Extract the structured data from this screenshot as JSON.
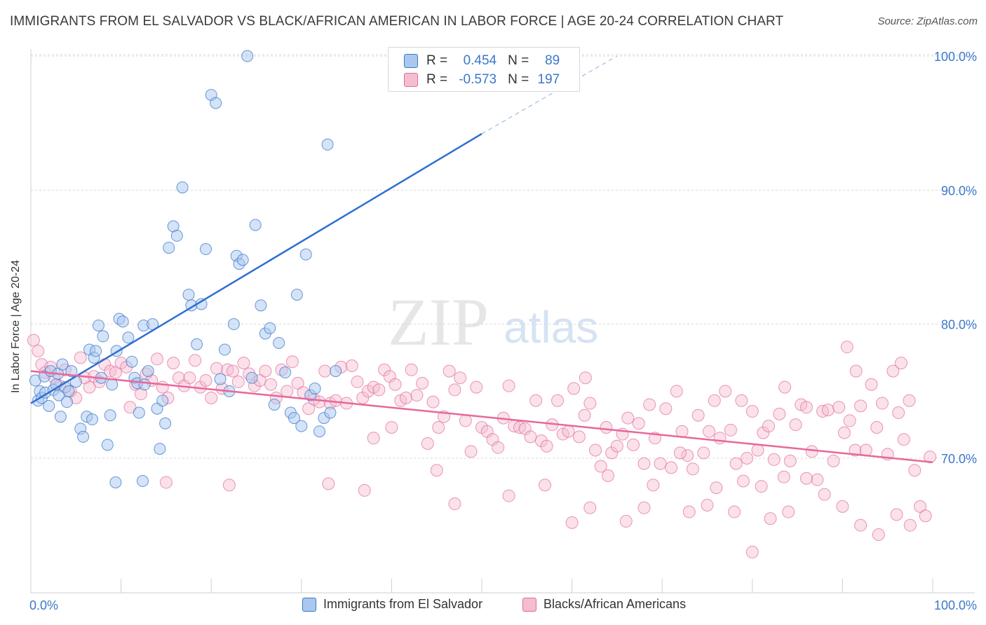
{
  "title": "IMMIGRANTS FROM EL SALVADOR VS BLACK/AFRICAN AMERICAN IN LABOR FORCE | AGE 20-24 CORRELATION CHART",
  "source": "Source: ZipAtlas.com",
  "watermark": {
    "zip": "ZIP",
    "atlas": "atlas"
  },
  "colors": {
    "blue": "#3a78c9",
    "blue_fill": "#a9c8ef",
    "blue_line": "#2f6fcf",
    "pink": "#e36b9a",
    "pink_fill": "#f4bdd0",
    "pink_line": "#e8679a",
    "grid": "#d9d9d9"
  },
  "legend_top": {
    "r_label": "R =",
    "n_label": "N =",
    "rows": [
      {
        "r": "0.454",
        "n": "89",
        "color": "#a9c8ef",
        "border": "#3a78c9"
      },
      {
        "r": "-0.573",
        "n": "197",
        "color": "#f4bdd0",
        "border": "#e36b9a"
      }
    ]
  },
  "legend_bottom": [
    {
      "label": "Immigrants from El Salvador",
      "color": "#a9c8ef",
      "border": "#3a78c9"
    },
    {
      "label": "Blacks/African Americans",
      "color": "#f4bdd0",
      "border": "#e36b9a"
    }
  ],
  "chart_data": {
    "type": "scatter",
    "title": "IMMIGRANTS FROM EL SALVADOR VS BLACK/AFRICAN AMERICAN IN LABOR FORCE | AGE 20-24 CORRELATION CHART",
    "xlabel": "",
    "ylabel": "In Labor Force | Age 20-24",
    "xlim": [
      0,
      100
    ],
    "ylim": [
      61,
      101
    ],
    "x_tick_labels": [
      "0.0%",
      "100.0%"
    ],
    "y_ticks": [
      70,
      80,
      90,
      100
    ],
    "y_tick_labels": [
      "70.0%",
      "80.0%",
      "90.0%",
      "100.0%"
    ],
    "grid": true,
    "legend_position": "top-center",
    "series": [
      {
        "name": "Immigrants from El Salvador",
        "color": "#3a78c9",
        "R": 0.454,
        "N": 89,
        "trend": {
          "x0": 0,
          "y0": 74.1,
          "x1": 50,
          "y1": 94.2,
          "dash_to_x": 65,
          "dash_to_y": 100.0
        },
        "points": [
          [
            0.5,
            75.8
          ],
          [
            0.8,
            74.3
          ],
          [
            1.0,
            75.0
          ],
          [
            1.2,
            74.5
          ],
          [
            1.5,
            76.1
          ],
          [
            1.6,
            74.9
          ],
          [
            2.0,
            73.9
          ],
          [
            2.2,
            76.5
          ],
          [
            2.5,
            75.1
          ],
          [
            2.8,
            75.5
          ],
          [
            3.0,
            76.3
          ],
          [
            3.1,
            74.7
          ],
          [
            3.5,
            77.0
          ],
          [
            3.8,
            75.3
          ],
          [
            4.0,
            74.2
          ],
          [
            4.2,
            75.0
          ],
          [
            4.5,
            76.5
          ],
          [
            5.0,
            75.7
          ],
          [
            5.5,
            72.2
          ],
          [
            5.8,
            71.6
          ],
          [
            6.2,
            73.1
          ],
          [
            6.5,
            78.1
          ],
          [
            6.8,
            72.9
          ],
          [
            7.0,
            77.5
          ],
          [
            7.2,
            78.0
          ],
          [
            7.5,
            79.9
          ],
          [
            7.8,
            76.0
          ],
          [
            8.0,
            79.1
          ],
          [
            8.5,
            71.0
          ],
          [
            8.8,
            73.2
          ],
          [
            9.0,
            75.5
          ],
          [
            9.5,
            78.0
          ],
          [
            9.8,
            80.4
          ],
          [
            10.2,
            80.2
          ],
          [
            10.8,
            79.0
          ],
          [
            11.2,
            77.2
          ],
          [
            11.5,
            76.0
          ],
          [
            11.8,
            75.6
          ],
          [
            12.0,
            73.4
          ],
          [
            12.5,
            79.9
          ],
          [
            13.0,
            76.5
          ],
          [
            13.5,
            80.0
          ],
          [
            14.0,
            73.7
          ],
          [
            14.3,
            70.7
          ],
          [
            14.6,
            74.3
          ],
          [
            14.9,
            72.6
          ],
          [
            15.3,
            85.7
          ],
          [
            15.8,
            87.3
          ],
          [
            16.2,
            86.6
          ],
          [
            16.8,
            90.2
          ],
          [
            17.5,
            82.2
          ],
          [
            17.8,
            81.4
          ],
          [
            18.4,
            78.5
          ],
          [
            18.9,
            81.5
          ],
          [
            19.4,
            85.6
          ],
          [
            20.0,
            97.1
          ],
          [
            20.5,
            96.5
          ],
          [
            21.0,
            75.9
          ],
          [
            21.5,
            78.1
          ],
          [
            22.0,
            75.0
          ],
          [
            22.5,
            80.0
          ],
          [
            22.8,
            85.1
          ],
          [
            23.1,
            84.5
          ],
          [
            23.5,
            84.8
          ],
          [
            24.0,
            100.0
          ],
          [
            24.5,
            76.0
          ],
          [
            24.9,
            87.4
          ],
          [
            25.5,
            81.4
          ],
          [
            26.0,
            79.3
          ],
          [
            26.5,
            79.7
          ],
          [
            27.0,
            74.0
          ],
          [
            27.5,
            78.6
          ],
          [
            28.2,
            76.4
          ],
          [
            28.8,
            73.4
          ],
          [
            29.2,
            73.0
          ],
          [
            29.5,
            82.2
          ],
          [
            30.0,
            72.4
          ],
          [
            30.5,
            85.2
          ],
          [
            31.0,
            74.7
          ],
          [
            31.5,
            75.2
          ],
          [
            32.0,
            72.0
          ],
          [
            32.5,
            73.0
          ],
          [
            32.9,
            93.4
          ],
          [
            33.2,
            73.4
          ],
          [
            33.8,
            76.5
          ],
          [
            9.4,
            68.2
          ],
          [
            12.4,
            68.3
          ],
          [
            3.3,
            73.1
          ],
          [
            12.6,
            75.5
          ]
        ]
      },
      {
        "name": "Blacks/African Americans",
        "color": "#e36b9a",
        "R": -0.573,
        "N": 197,
        "trend": {
          "x0": 0,
          "y0": 76.5,
          "x1": 100,
          "y1": 69.7
        },
        "points": [
          [
            0.3,
            78.8
          ],
          [
            0.8,
            78.0
          ],
          [
            1.2,
            77.0
          ],
          [
            1.6,
            76.4
          ],
          [
            2.2,
            76.8
          ],
          [
            2.6,
            76.0
          ],
          [
            3.2,
            75.4
          ],
          [
            3.8,
            76.6
          ],
          [
            4.4,
            75.0
          ],
          [
            5.0,
            74.5
          ],
          [
            5.5,
            77.5
          ],
          [
            6.0,
            76.0
          ],
          [
            6.5,
            75.3
          ],
          [
            7.0,
            76.1
          ],
          [
            7.6,
            75.7
          ],
          [
            8.2,
            77.0
          ],
          [
            8.8,
            76.5
          ],
          [
            9.4,
            76.4
          ],
          [
            10.0,
            77.1
          ],
          [
            10.6,
            76.8
          ],
          [
            11.0,
            73.8
          ],
          [
            11.6,
            75.5
          ],
          [
            12.2,
            74.8
          ],
          [
            12.8,
            76.3
          ],
          [
            13.4,
            75.8
          ],
          [
            14.0,
            77.4
          ],
          [
            14.6,
            75.3
          ],
          [
            15.2,
            74.5
          ],
          [
            15.8,
            77.1
          ],
          [
            16.4,
            76.0
          ],
          [
            17.0,
            75.4
          ],
          [
            17.6,
            76.0
          ],
          [
            18.2,
            77.3
          ],
          [
            18.8,
            75.3
          ],
          [
            19.4,
            75.8
          ],
          [
            20.0,
            74.5
          ],
          [
            20.6,
            76.7
          ],
          [
            21.2,
            75.2
          ],
          [
            21.8,
            76.6
          ],
          [
            22.4,
            76.5
          ],
          [
            23.0,
            75.7
          ],
          [
            23.6,
            77.1
          ],
          [
            24.2,
            76.3
          ],
          [
            24.8,
            75.4
          ],
          [
            25.4,
            75.8
          ],
          [
            26.0,
            76.5
          ],
          [
            26.6,
            75.5
          ],
          [
            27.2,
            74.5
          ],
          [
            27.8,
            76.6
          ],
          [
            28.4,
            75.0
          ],
          [
            29.0,
            77.2
          ],
          [
            29.6,
            75.6
          ],
          [
            30.2,
            74.9
          ],
          [
            30.8,
            73.7
          ],
          [
            31.4,
            74.4
          ],
          [
            32.0,
            74.2
          ],
          [
            32.6,
            76.5
          ],
          [
            33.2,
            74.1
          ],
          [
            33.8,
            74.3
          ],
          [
            34.4,
            76.8
          ],
          [
            35.0,
            74.1
          ],
          [
            35.6,
            76.9
          ],
          [
            36.2,
            75.7
          ],
          [
            36.8,
            74.5
          ],
          [
            37.4,
            75.0
          ],
          [
            38.0,
            75.3
          ],
          [
            38.6,
            75.1
          ],
          [
            39.2,
            76.6
          ],
          [
            39.8,
            76.1
          ],
          [
            40.4,
            75.5
          ],
          [
            41.0,
            74.3
          ],
          [
            41.6,
            74.5
          ],
          [
            42.2,
            76.6
          ],
          [
            42.8,
            74.7
          ],
          [
            43.4,
            75.6
          ],
          [
            44.0,
            71.1
          ],
          [
            44.6,
            74.2
          ],
          [
            45.2,
            72.3
          ],
          [
            45.8,
            73.1
          ],
          [
            46.4,
            76.5
          ],
          [
            47.0,
            75.1
          ],
          [
            47.6,
            76.0
          ],
          [
            48.2,
            72.8
          ],
          [
            48.8,
            70.5
          ],
          [
            49.4,
            75.3
          ],
          [
            50.0,
            72.3
          ],
          [
            50.6,
            72.0
          ],
          [
            51.2,
            71.4
          ],
          [
            51.8,
            70.8
          ],
          [
            52.4,
            73.0
          ],
          [
            53.0,
            75.4
          ],
          [
            53.6,
            72.4
          ],
          [
            54.2,
            72.3
          ],
          [
            54.8,
            72.2
          ],
          [
            55.4,
            71.6
          ],
          [
            56.0,
            74.3
          ],
          [
            56.6,
            71.3
          ],
          [
            57.2,
            70.9
          ],
          [
            57.8,
            72.5
          ],
          [
            58.4,
            74.3
          ],
          [
            59.0,
            71.8
          ],
          [
            59.6,
            72.0
          ],
          [
            60.2,
            75.2
          ],
          [
            60.8,
            71.6
          ],
          [
            61.4,
            73.2
          ],
          [
            62.0,
            74.1
          ],
          [
            62.6,
            70.6
          ],
          [
            63.2,
            69.4
          ],
          [
            63.8,
            72.3
          ],
          [
            64.4,
            70.4
          ],
          [
            65.0,
            70.9
          ],
          [
            65.6,
            71.8
          ],
          [
            66.2,
            73.0
          ],
          [
            66.8,
            71.0
          ],
          [
            67.4,
            72.6
          ],
          [
            68.0,
            69.6
          ],
          [
            68.6,
            74.0
          ],
          [
            69.2,
            71.5
          ],
          [
            69.8,
            69.6
          ],
          [
            70.4,
            73.7
          ],
          [
            71.0,
            69.3
          ],
          [
            71.6,
            75.0
          ],
          [
            72.2,
            72.0
          ],
          [
            72.8,
            70.2
          ],
          [
            73.4,
            69.2
          ],
          [
            74.0,
            73.2
          ],
          [
            74.6,
            70.4
          ],
          [
            75.2,
            72.0
          ],
          [
            75.8,
            74.3
          ],
          [
            76.4,
            71.5
          ],
          [
            77.0,
            75.0
          ],
          [
            77.6,
            72.1
          ],
          [
            78.2,
            69.6
          ],
          [
            78.8,
            74.3
          ],
          [
            79.4,
            70.0
          ],
          [
            80.0,
            73.5
          ],
          [
            80.6,
            70.6
          ],
          [
            81.2,
            71.9
          ],
          [
            81.8,
            72.4
          ],
          [
            82.4,
            69.9
          ],
          [
            83.0,
            73.3
          ],
          [
            83.6,
            75.3
          ],
          [
            84.2,
            69.8
          ],
          [
            84.8,
            72.5
          ],
          [
            85.4,
            74.0
          ],
          [
            86.0,
            73.8
          ],
          [
            86.6,
            70.5
          ],
          [
            87.2,
            68.4
          ],
          [
            87.8,
            73.5
          ],
          [
            88.4,
            73.6
          ],
          [
            89.0,
            69.8
          ],
          [
            89.6,
            73.8
          ],
          [
            90.2,
            71.9
          ],
          [
            90.8,
            72.8
          ],
          [
            91.4,
            70.6
          ],
          [
            92.0,
            73.9
          ],
          [
            92.6,
            70.6
          ],
          [
            93.2,
            75.5
          ],
          [
            93.8,
            72.3
          ],
          [
            94.4,
            74.1
          ],
          [
            95.0,
            70.3
          ],
          [
            95.6,
            76.5
          ],
          [
            96.2,
            73.4
          ],
          [
            96.8,
            71.4
          ],
          [
            97.4,
            74.3
          ],
          [
            98.0,
            69.1
          ],
          [
            98.6,
            66.4
          ],
          [
            99.2,
            65.7
          ],
          [
            99.7,
            70.1
          ],
          [
            15.0,
            68.2
          ],
          [
            22.0,
            68.0
          ],
          [
            33.0,
            68.1
          ],
          [
            37.0,
            67.6
          ],
          [
            38.0,
            71.5
          ],
          [
            40.0,
            72.3
          ],
          [
            45.0,
            69.1
          ],
          [
            47.0,
            66.6
          ],
          [
            53.0,
            67.2
          ],
          [
            57.0,
            68.0
          ],
          [
            60.0,
            65.2
          ],
          [
            62.0,
            66.3
          ],
          [
            64.0,
            68.7
          ],
          [
            66.0,
            65.3
          ],
          [
            68.0,
            66.3
          ],
          [
            69.0,
            68.0
          ],
          [
            72.0,
            70.4
          ],
          [
            73.0,
            66.0
          ],
          [
            75.0,
            66.5
          ],
          [
            76.0,
            67.8
          ],
          [
            78.0,
            66.0
          ],
          [
            80.0,
            63.0
          ],
          [
            82.0,
            65.5
          ],
          [
            84.0,
            66.0
          ],
          [
            86.0,
            68.5
          ],
          [
            88.0,
            67.3
          ],
          [
            90.0,
            66.4
          ],
          [
            92.0,
            65.0
          ],
          [
            94.0,
            64.3
          ],
          [
            96.0,
            65.8
          ],
          [
            97.5,
            65.0
          ],
          [
            79.0,
            68.3
          ],
          [
            81.0,
            67.9
          ],
          [
            83.5,
            68.6
          ],
          [
            90.5,
            78.3
          ],
          [
            91.5,
            76.5
          ],
          [
            96.5,
            77.1
          ],
          [
            61.5,
            76.0
          ]
        ]
      }
    ]
  }
}
